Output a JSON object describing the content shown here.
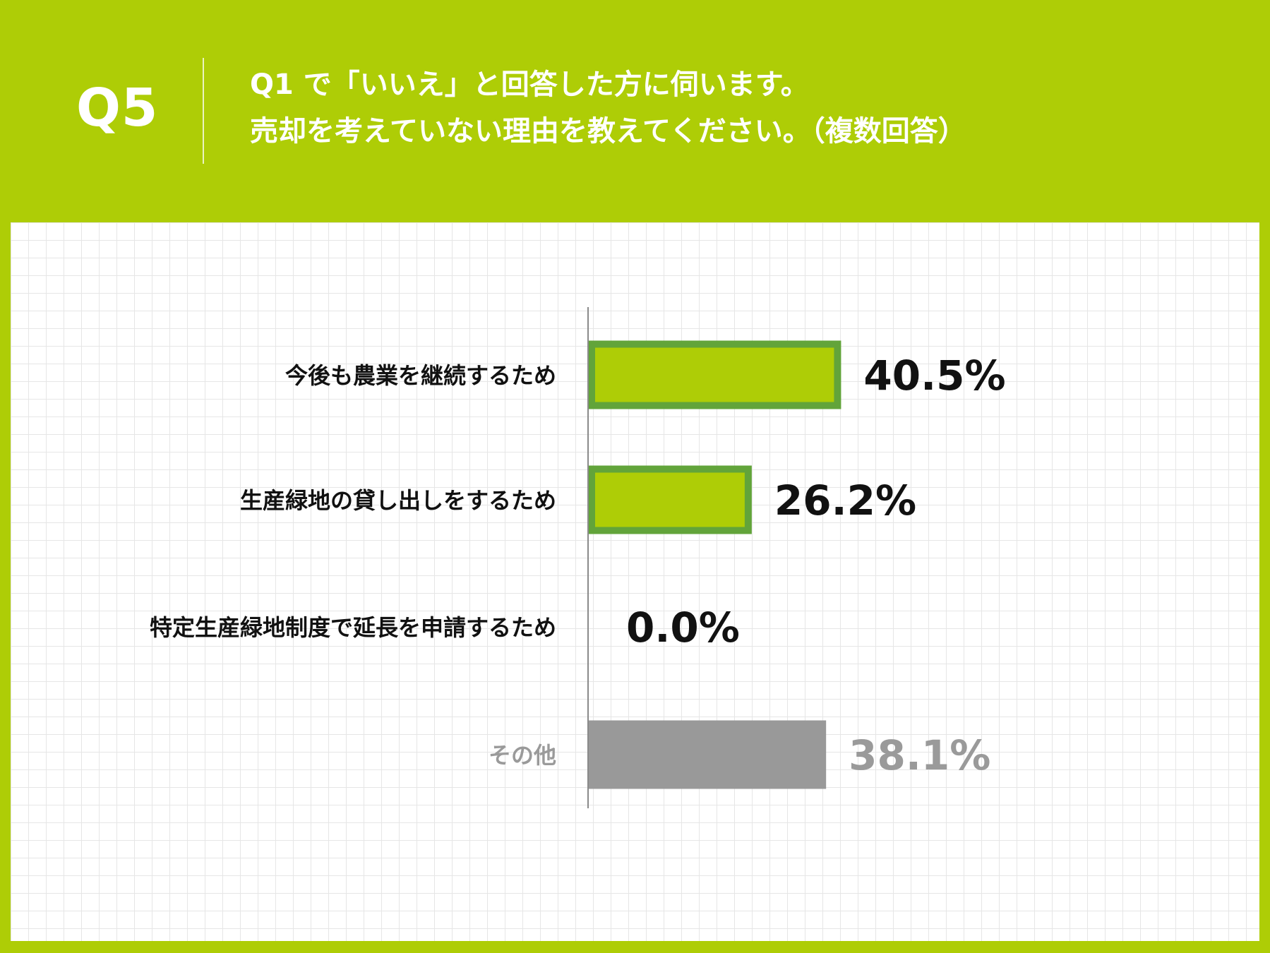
{
  "header": {
    "question_number": "Q5",
    "question_line1": "Q1 で「いいえ」と回答した方に伺います。",
    "question_line2": "売却を考えていない理由を教えてください。（複数回答）"
  },
  "colors": {
    "background": "#aecd06",
    "bar_fill": "#aecd06",
    "bar_border": "#62a43a",
    "other_bar": "#999999",
    "text_dark": "#111111",
    "text_gray": "#9a9a9a"
  },
  "chart_data": {
    "type": "bar",
    "orientation": "horizontal",
    "unit": "%",
    "xlim": [
      0,
      100
    ],
    "categories": [
      "今後も農業を継続するため",
      "生産緑地の貸し出しをするため",
      "特定生産緑地制度で延長を申請するため",
      "その他"
    ],
    "values": [
      40.5,
      26.2,
      0.0,
      38.1
    ],
    "value_labels": [
      "40.5%",
      "26.2%",
      "0.0%",
      "38.1%"
    ],
    "bar_styles": [
      "highlight",
      "highlight",
      "highlight",
      "other"
    ],
    "grid": true,
    "legend": "none"
  }
}
